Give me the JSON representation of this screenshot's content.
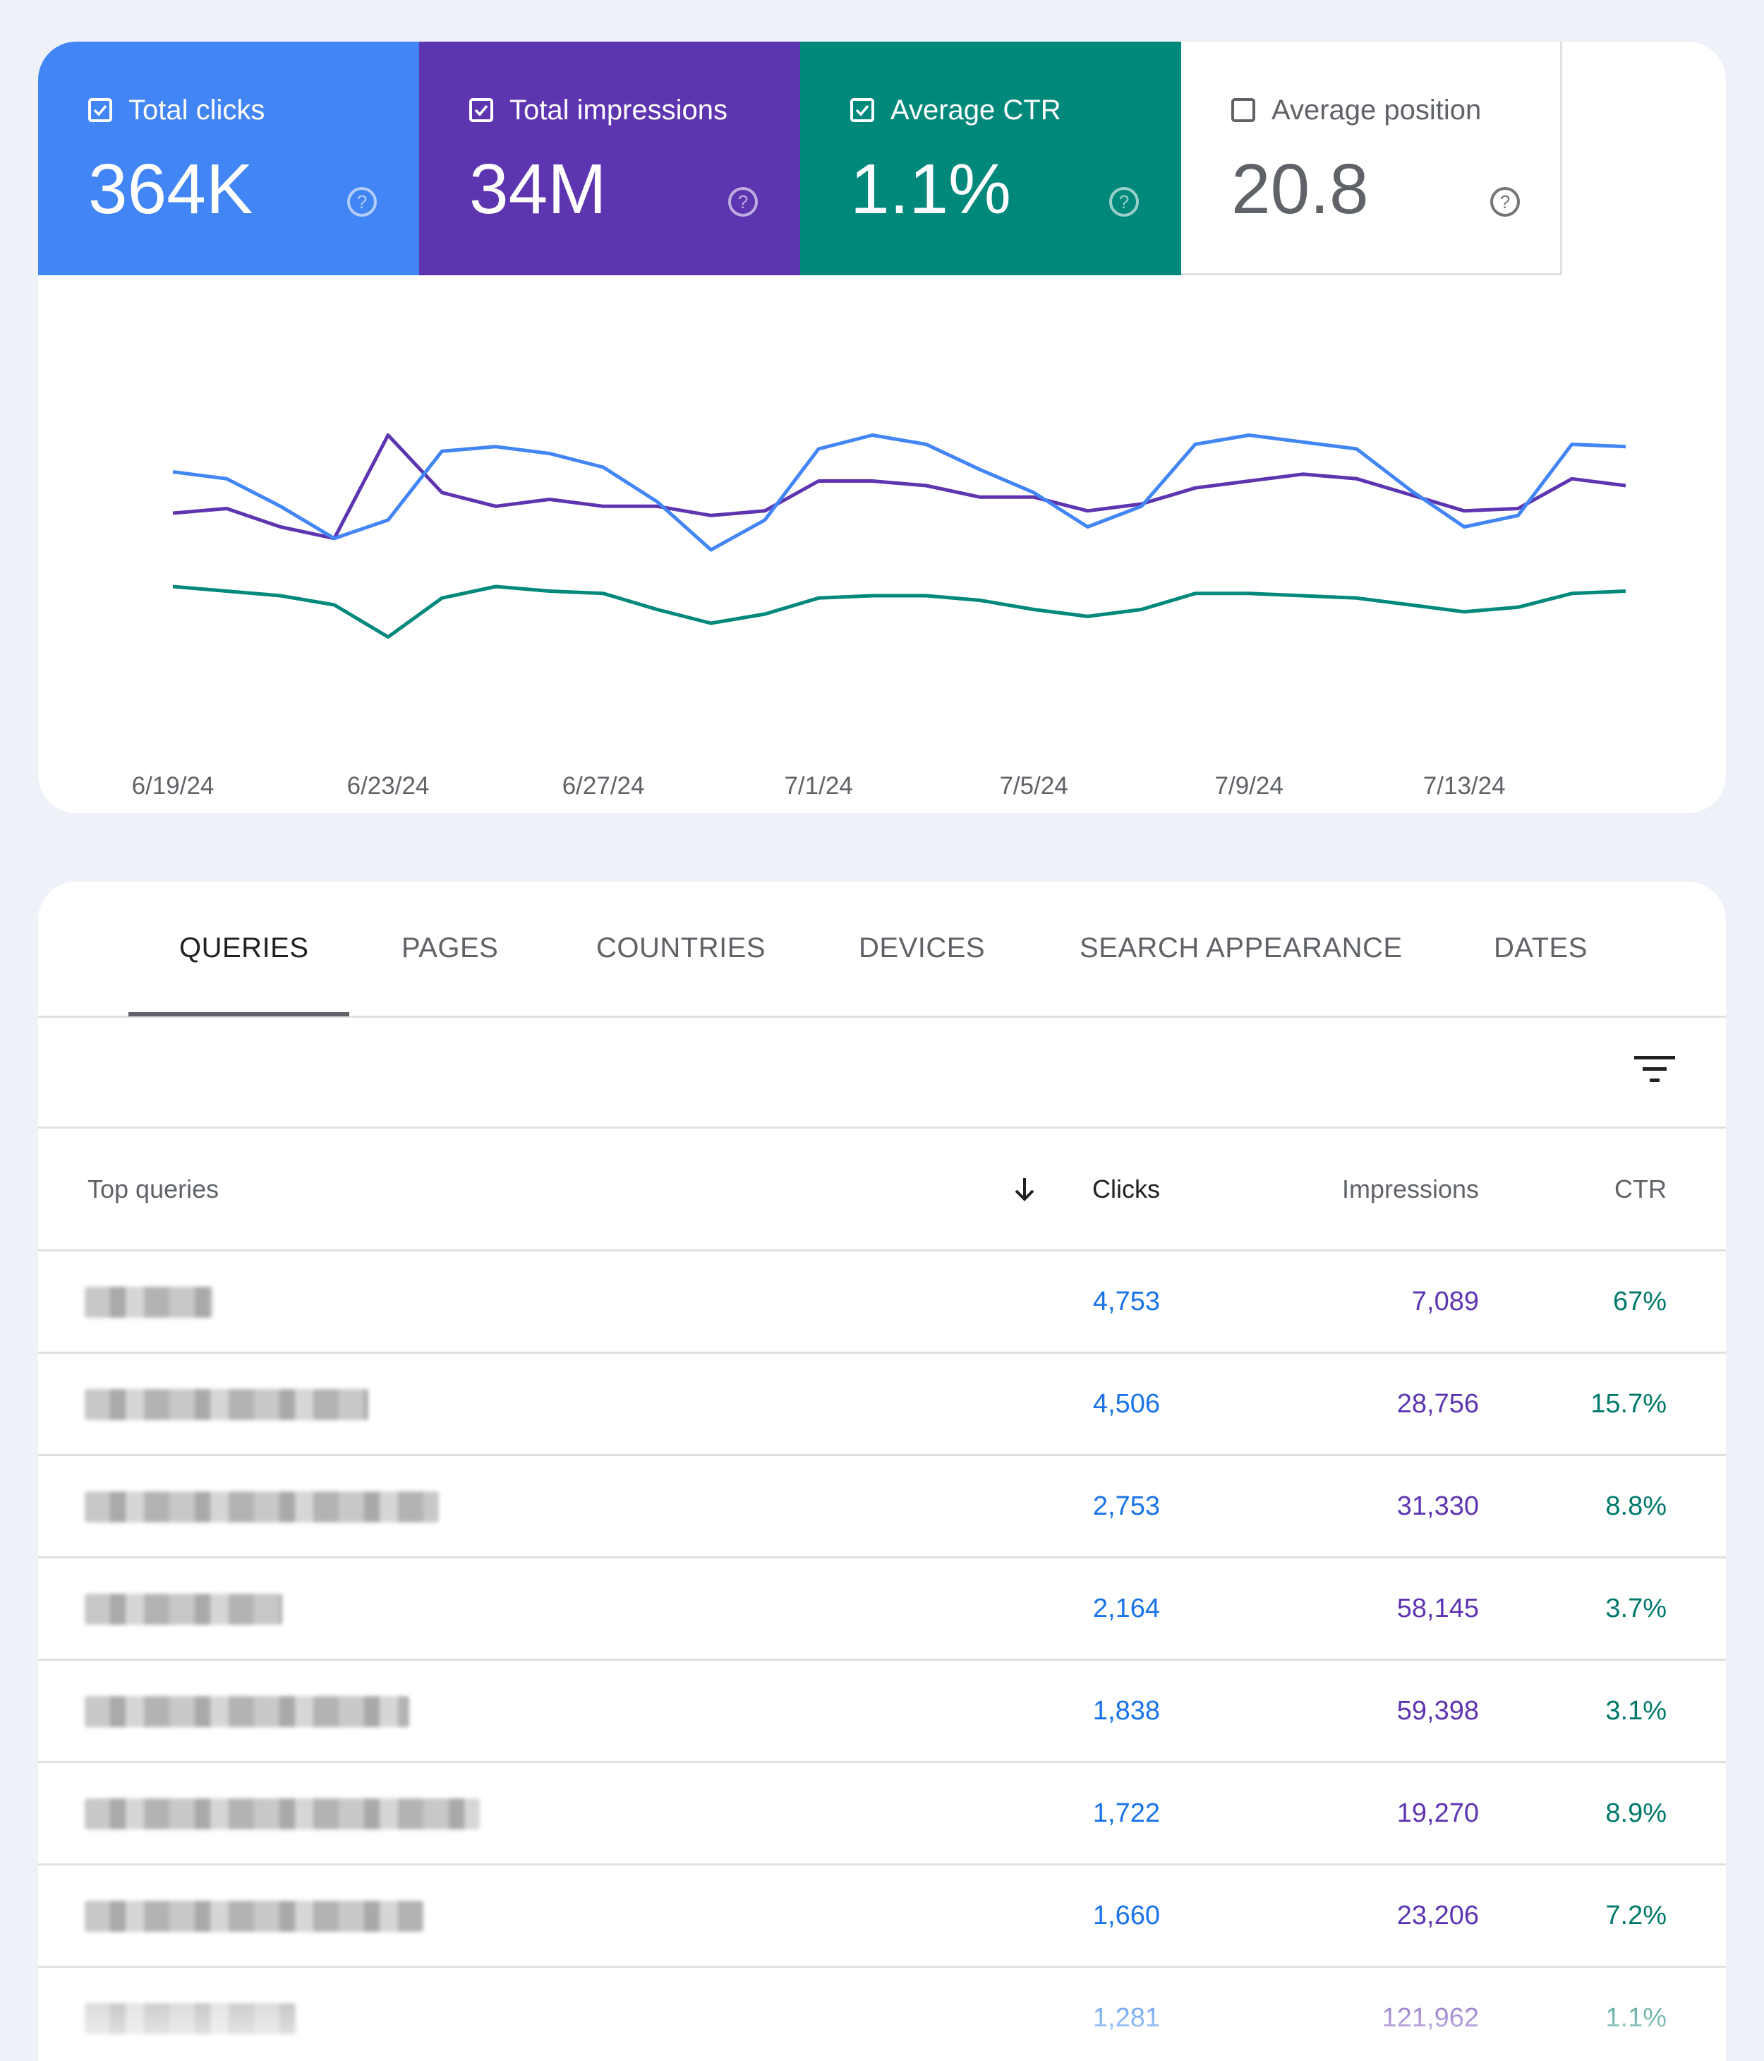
{
  "metrics": {
    "clicks": {
      "label": "Total clicks",
      "value": "364K",
      "checked": true
    },
    "impressions": {
      "label": "Total impressions",
      "value": "34M",
      "checked": true
    },
    "ctr": {
      "label": "Average CTR",
      "value": "1.1%",
      "checked": true
    },
    "position": {
      "label": "Average position",
      "value": "20.8",
      "checked": false
    }
  },
  "chart_data": {
    "type": "line",
    "x": [
      "6/19/24",
      "6/20/24",
      "6/21/24",
      "6/22/24",
      "6/23/24",
      "6/24/24",
      "6/25/24",
      "6/26/24",
      "6/27/24",
      "6/28/24",
      "6/29/24",
      "6/30/24",
      "7/1/24",
      "7/2/24",
      "7/3/24",
      "7/4/24",
      "7/5/24",
      "7/6/24",
      "7/7/24",
      "7/8/24",
      "7/9/24",
      "7/10/24",
      "7/11/24",
      "7/12/24",
      "7/13/24",
      "7/14/24",
      "7/15/24",
      "7/16/24"
    ],
    "xticks": [
      "6/19/24",
      "6/23/24",
      "6/27/24",
      "7/1/24",
      "7/5/24",
      "7/9/24",
      "7/13/24"
    ],
    "series": [
      {
        "name": "Total clicks",
        "color": "#4285f4",
        "values": [
          62,
          59,
          47,
          33,
          41,
          71,
          73,
          70,
          64,
          49,
          28,
          41,
          72,
          78,
          74,
          63,
          53,
          38,
          47,
          74,
          78,
          75,
          72,
          54,
          38,
          43,
          74,
          73
        ]
      },
      {
        "name": "Total impressions",
        "color": "#5e35b1",
        "values": [
          44,
          46,
          38,
          33,
          78,
          53,
          47,
          50,
          47,
          47,
          43,
          45,
          58,
          58,
          56,
          51,
          51,
          45,
          48,
          55,
          58,
          61,
          59,
          52,
          45,
          46,
          59,
          56
        ]
      },
      {
        "name": "Average CTR",
        "color": "#00897b",
        "values": [
          12,
          10,
          8,
          4,
          -10,
          7,
          12,
          10,
          9,
          2,
          -4,
          0,
          7,
          8,
          8,
          6,
          2,
          -1,
          2,
          9,
          9,
          8,
          7,
          4,
          1,
          3,
          9,
          10
        ]
      }
    ],
    "ylim": [
      -40,
      120
    ]
  },
  "tabs": [
    "QUERIES",
    "PAGES",
    "COUNTRIES",
    "DEVICES",
    "SEARCH APPEARANCE",
    "DATES"
  ],
  "table": {
    "headers": {
      "query": "Top queries",
      "clicks": "Clicks",
      "impressions": "Impressions",
      "ctr": "CTR"
    },
    "rows": [
      {
        "clicks": "4,753",
        "impressions": "7,089",
        "ctr": "67%"
      },
      {
        "clicks": "4,506",
        "impressions": "28,756",
        "ctr": "15.7%"
      },
      {
        "clicks": "2,753",
        "impressions": "31,330",
        "ctr": "8.8%"
      },
      {
        "clicks": "2,164",
        "impressions": "58,145",
        "ctr": "3.7%"
      },
      {
        "clicks": "1,838",
        "impressions": "59,398",
        "ctr": "3.1%"
      },
      {
        "clicks": "1,722",
        "impressions": "19,270",
        "ctr": "8.9%"
      },
      {
        "clicks": "1,660",
        "impressions": "23,206",
        "ctr": "7.2%"
      },
      {
        "clicks": "1,281",
        "impressions": "121,962",
        "ctr": "1.1%"
      }
    ]
  }
}
